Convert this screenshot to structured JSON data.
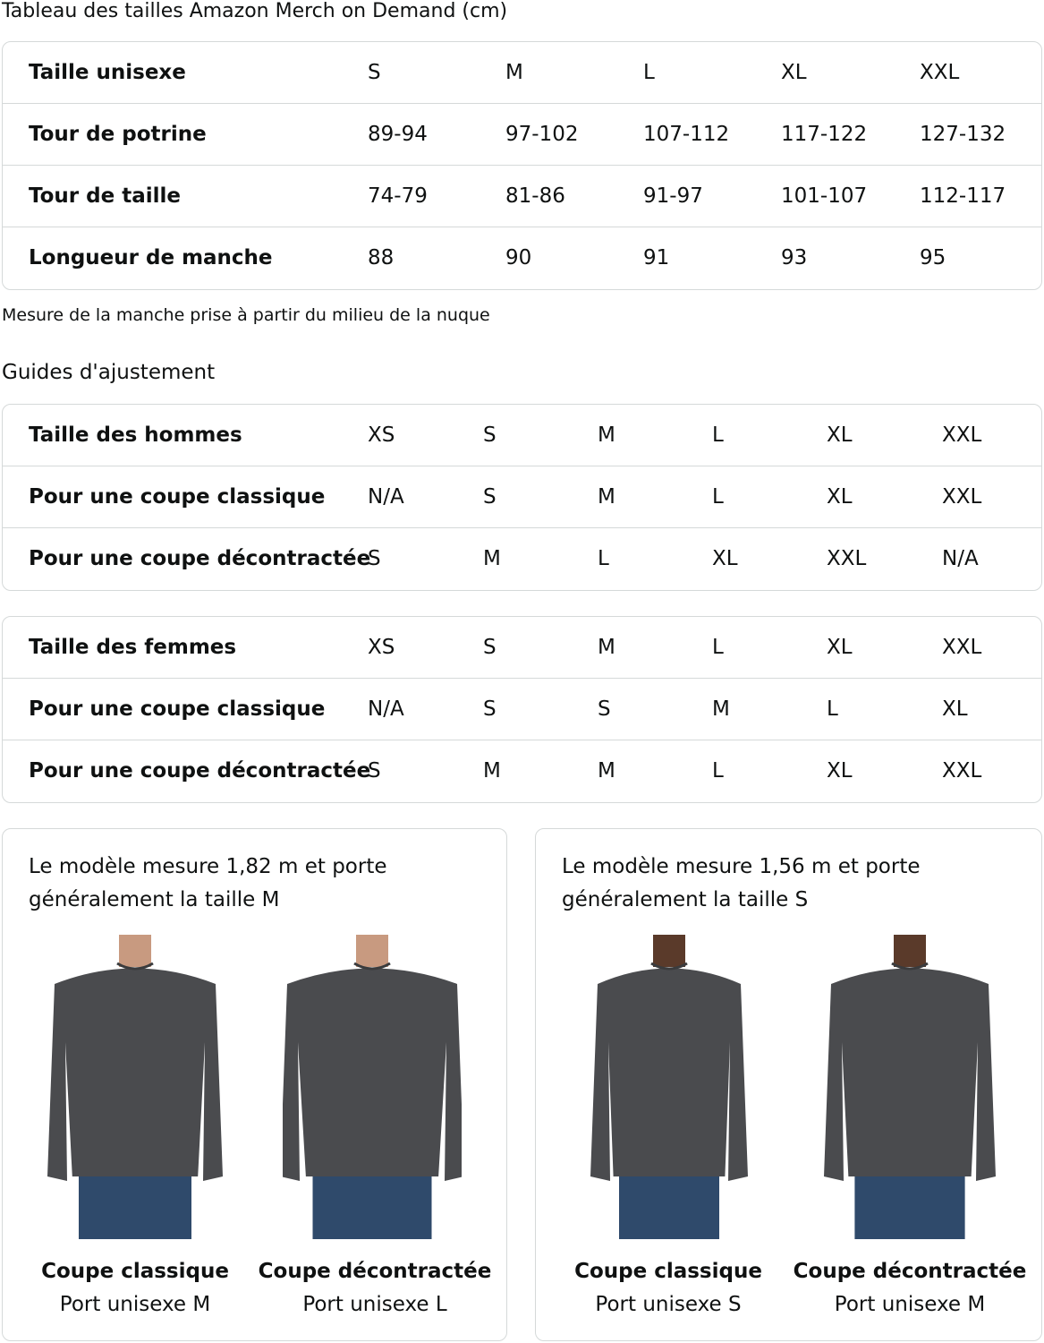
{
  "title": "Tableau des tailles Amazon Merch on Demand (cm)",
  "size_table": {
    "rows": [
      {
        "label": "Taille unisexe",
        "values": [
          "S",
          "M",
          "L",
          "XL",
          "XXL"
        ]
      },
      {
        "label": "Tour de potrine",
        "values": [
          "89-94",
          "97-102",
          "107-112",
          "117-122",
          "127-132"
        ]
      },
      {
        "label": "Tour de taille",
        "values": [
          "74-79",
          "81-86",
          "91-97",
          "101-107",
          "112-117"
        ]
      },
      {
        "label": "Longueur de manche",
        "values": [
          "88",
          "90",
          "91",
          "93",
          "95"
        ]
      }
    ]
  },
  "note": "Mesure de la manche prise à partir du milieu de la nuque",
  "fit_title": "Guides d'ajustement",
  "men_table": {
    "rows": [
      {
        "label": "Taille des hommes",
        "values": [
          "XS",
          "S",
          "M",
          "L",
          "XL",
          "XXL"
        ]
      },
      {
        "label": "Pour une coupe classique",
        "values": [
          "N/A",
          "S",
          "M",
          "L",
          "XL",
          "XXL"
        ]
      },
      {
        "label": "Pour une coupe décontractée",
        "values": [
          "S",
          "M",
          "L",
          "XL",
          "XXL",
          "N/A"
        ]
      }
    ]
  },
  "women_table": {
    "rows": [
      {
        "label": "Taille des femmes",
        "values": [
          "XS",
          "S",
          "M",
          "L",
          "XL",
          "XXL"
        ]
      },
      {
        "label": "Pour une coupe classique",
        "values": [
          "N/A",
          "S",
          "S",
          "M",
          "L",
          "XL"
        ]
      },
      {
        "label": "Pour une coupe décontractée",
        "values": [
          "S",
          "M",
          "M",
          "L",
          "XL",
          "XXL"
        ]
      }
    ]
  },
  "panels": [
    {
      "text": "Le modèle mesure 1,82 m et porte généralement la taille M",
      "figures": [
        {
          "fit": "Coupe classique",
          "size": "Port unisexe M"
        },
        {
          "fit": "Coupe décontractée",
          "size": "Port unisexe L"
        }
      ]
    },
    {
      "text": "Le modèle mesure 1,56 m et porte généralement la taille S",
      "figures": [
        {
          "fit": "Coupe classique",
          "size": "Port unisexe S"
        },
        {
          "fit": "Coupe décontractée",
          "size": "Port unisexe M"
        }
      ]
    }
  ],
  "colors": {
    "border": "#d5d9d9",
    "text": "#0f1111",
    "shirt": "#4a4b4e",
    "jeans": "#2f4a6b"
  }
}
